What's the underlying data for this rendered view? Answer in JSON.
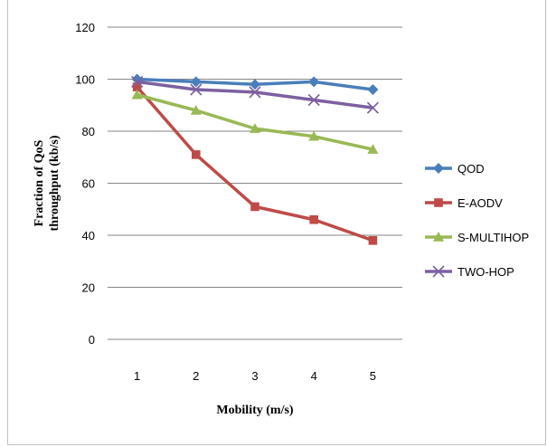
{
  "chart_data": {
    "type": "line",
    "title": "",
    "xlabel": "Mobility (m/s)",
    "ylabel": "Fraction of QoS throughput (kb/s)",
    "x": [
      1,
      2,
      3,
      4,
      5
    ],
    "ylim": [
      0,
      120
    ],
    "yticks": [
      0,
      20,
      40,
      60,
      80,
      100,
      120
    ],
    "grid": "horizontal",
    "legend": "right",
    "series": [
      {
        "name": "QOD",
        "values": [
          100,
          99,
          98,
          99,
          96
        ],
        "color": "#4a7ebb",
        "marker": "diamond"
      },
      {
        "name": "E-AODV",
        "values": [
          97,
          71,
          51,
          46,
          38
        ],
        "color": "#be4b48",
        "marker": "square"
      },
      {
        "name": "S-MULTIHOP",
        "values": [
          94,
          88,
          81,
          78,
          73
        ],
        "color": "#98b954",
        "marker": "triangle"
      },
      {
        "name": "TWO-HOP",
        "values": [
          99,
          96,
          95,
          92,
          89
        ],
        "color": "#7d60a0",
        "marker": "x"
      }
    ]
  }
}
